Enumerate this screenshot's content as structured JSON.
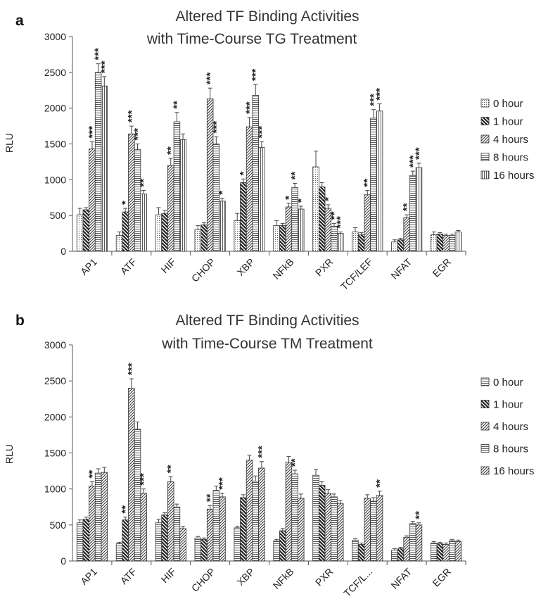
{
  "colors": {
    "bar_stroke": "#333333",
    "axis": "#555555",
    "error_bar": "#444444",
    "pattern": "#333333"
  },
  "chart_data": [
    {
      "panel": "a",
      "type": "bar",
      "title_lines": [
        "Altered TF Binding Activities",
        "with Time-Course TG Treatment"
      ],
      "ylabel": "RLU",
      "ylim": [
        0,
        3000
      ],
      "yticks": [
        "0",
        "500",
        "1000",
        "1500",
        "2000",
        "2500",
        "3000"
      ],
      "categories": [
        "AP1",
        "ATF",
        "HIF",
        "CHOP",
        "XBP",
        "NFkB",
        "PXR",
        "TCF/LEF",
        "NFAT",
        "EGR"
      ],
      "legend_position": "right",
      "series": [
        {
          "name": "0 hour",
          "pattern": "dots",
          "values": [
            510,
            220,
            510,
            300,
            430,
            360,
            1180,
            270,
            130,
            230
          ],
          "errors": [
            90,
            50,
            100,
            60,
            100,
            70,
            220,
            60,
            30,
            40
          ]
        },
        {
          "name": "1 hour",
          "pattern": "back",
          "values": [
            580,
            550,
            530,
            370,
            960,
            360,
            900,
            230,
            160,
            240
          ],
          "errors": [
            30,
            50,
            40,
            30,
            50,
            30,
            60,
            30,
            20,
            20
          ]
        },
        {
          "name": "4 hours",
          "pattern": "fwd",
          "values": [
            1430,
            1640,
            1200,
            2130,
            1740,
            620,
            600,
            790,
            470,
            220
          ],
          "errors": [
            100,
            110,
            100,
            150,
            130,
            50,
            50,
            60,
            40,
            20
          ]
        },
        {
          "name": "8 hours",
          "pattern": "hz",
          "values": [
            2500,
            1420,
            1810,
            1500,
            2180,
            890,
            350,
            1860,
            1060,
            220
          ],
          "errors": [
            120,
            80,
            130,
            100,
            150,
            60,
            40,
            120,
            60,
            20
          ]
        },
        {
          "name": "16 hours",
          "pattern": "vt",
          "values": [
            2310,
            800,
            1560,
            700,
            1450,
            590,
            250,
            1960,
            1170,
            270
          ],
          "errors": [
            130,
            50,
            80,
            40,
            80,
            40,
            20,
            100,
            60,
            20
          ]
        }
      ],
      "stars": [
        [
          "",
          "",
          "",
          "",
          "",
          "",
          "",
          "",
          "",
          ""
        ],
        [
          "",
          "*",
          "",
          "",
          "*",
          "",
          "",
          "",
          "",
          ""
        ],
        [
          "***",
          "***",
          "**",
          "***",
          "***",
          "*",
          "*",
          "**",
          "**",
          ""
        ],
        [
          "***",
          "***",
          "**",
          "***",
          "***",
          "**",
          "**",
          "***",
          "***",
          ""
        ],
        [
          "***",
          "**",
          "",
          "*",
          "***",
          "*",
          "***",
          "***",
          "***",
          ""
        ]
      ]
    },
    {
      "panel": "b",
      "type": "bar",
      "title_lines": [
        "Altered TF Binding Activities",
        "with Time-Course TM Treatment"
      ],
      "ylabel": "RLU",
      "ylim": [
        0,
        3000
      ],
      "yticks": [
        "0",
        "500",
        "1000",
        "1500",
        "2000",
        "2500",
        "3000"
      ],
      "categories": [
        "AP1",
        "ATF",
        "HIF",
        "CHOP",
        "XBP",
        "NFkB",
        "PXR",
        "TCF/L...",
        "NFAT",
        "EGR"
      ],
      "legend_position": "right",
      "series": [
        {
          "name": "0 hour",
          "pattern": "hz",
          "values": [
            530,
            240,
            530,
            320,
            460,
            280,
            1190,
            290,
            150,
            250
          ],
          "errors": [
            40,
            20,
            50,
            20,
            20,
            20,
            80,
            20,
            20,
            20
          ]
        },
        {
          "name": "1 hour",
          "pattern": "back",
          "values": [
            580,
            570,
            640,
            300,
            880,
            420,
            1050,
            230,
            170,
            240
          ],
          "errors": [
            30,
            40,
            30,
            20,
            40,
            30,
            50,
            20,
            20,
            20
          ]
        },
        {
          "name": "4 hours",
          "pattern": "fwd",
          "values": [
            1040,
            2400,
            1100,
            720,
            1400,
            1370,
            940,
            870,
            330,
            230
          ],
          "errors": [
            60,
            130,
            70,
            50,
            70,
            80,
            50,
            50,
            20,
            20
          ]
        },
        {
          "name": "8 hours",
          "pattern": "hz",
          "values": [
            1220,
            1830,
            750,
            980,
            1110,
            1210,
            890,
            830,
            520,
            280
          ],
          "errors": [
            60,
            100,
            40,
            60,
            70,
            50,
            40,
            50,
            30,
            20
          ]
        },
        {
          "name": "16 hours",
          "pattern": "fwd",
          "values": [
            1230,
            940,
            450,
            890,
            1290,
            870,
            800,
            910,
            500,
            270
          ],
          "errors": [
            70,
            60,
            30,
            50,
            90,
            60,
            40,
            60,
            30,
            20
          ]
        }
      ],
      "stars": [
        [
          "",
          "",
          "",
          "",
          "",
          "",
          "",
          "",
          "",
          ""
        ],
        [
          "",
          "**",
          "",
          "",
          "",
          "",
          "",
          "",
          "",
          ""
        ],
        [
          "**",
          "***",
          "**",
          "**",
          "",
          "",
          "",
          "",
          "",
          ""
        ],
        [
          "",
          "",
          "",
          "",
          "",
          "**",
          "",
          "",
          "",
          ""
        ],
        [
          "",
          "***",
          "",
          "***",
          "***",
          "",
          "",
          "**",
          "**",
          ""
        ]
      ]
    }
  ]
}
